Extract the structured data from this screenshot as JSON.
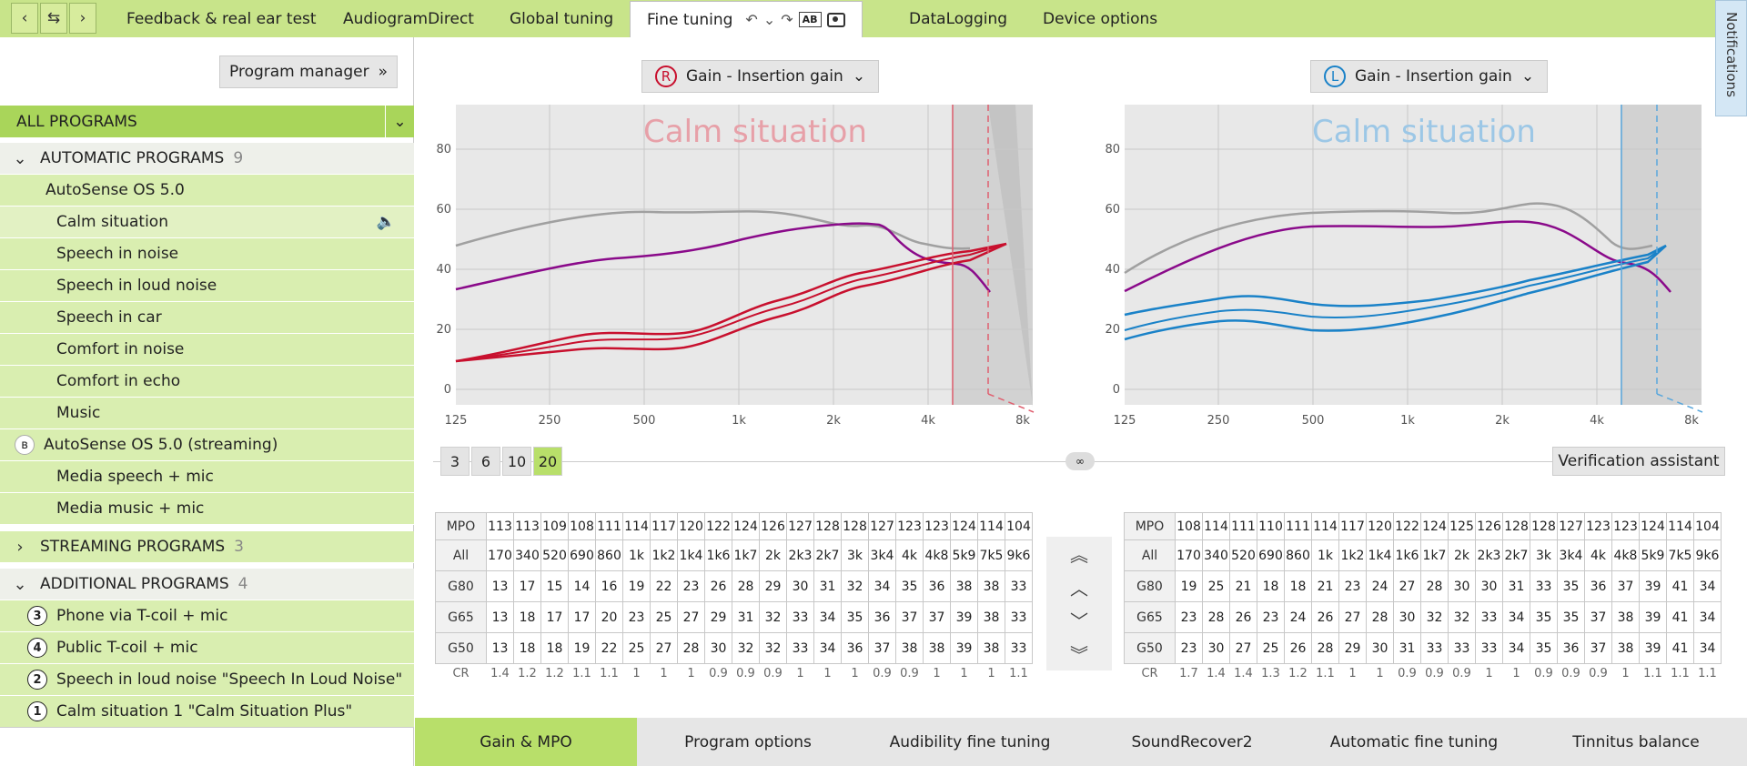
{
  "nav": {
    "back": "‹",
    "swap": "⇆",
    "forward": "›"
  },
  "tabs": [
    "Feedback & real ear test",
    "AudiogramDirect",
    "Global tuning",
    "Fine tuning",
    "DataLogging",
    "Device options"
  ],
  "tools": {
    "undo": "↶",
    "chev": "⌄",
    "redo": "↷",
    "ab": "AB"
  },
  "notifications": "Notifications",
  "sidebar": {
    "program_manager": "Program manager",
    "all_programs": "ALL PROGRAMS",
    "automatic": {
      "label": "AUTOMATIC PROGRAMS",
      "count": "9"
    },
    "autosense": "AutoSense OS 5.0",
    "auto_items": [
      "Calm situation",
      "Speech in noise",
      "Speech in loud noise",
      "Speech in car",
      "Comfort in noise",
      "Comfort in echo",
      "Music"
    ],
    "streaming_os": "AutoSense OS 5.0 (streaming)",
    "stream_items": [
      "Media speech + mic",
      "Media music + mic"
    ],
    "streaming": {
      "label": "STREAMING PROGRAMS",
      "count": "3"
    },
    "additional": {
      "label": "ADDITIONAL PROGRAMS",
      "count": "4"
    },
    "add_items": [
      {
        "num": "3",
        "label": "Phone via T-coil + mic"
      },
      {
        "num": "4",
        "label": "Public T-coil + mic"
      },
      {
        "num": "2",
        "label": "Speech in loud noise \"Speech In Loud Noise\""
      },
      {
        "num": "1",
        "label": "Calm situation 1 \"Calm Situation Plus\""
      }
    ]
  },
  "right_ear": {
    "badge": "R",
    "dropdown": "Gain - Insertion gain",
    "overlay": "Calm situation",
    "color": "#c8102e"
  },
  "left_ear": {
    "badge": "L",
    "dropdown": "Gain - Insertion gain",
    "overlay": "Calm situation",
    "color": "#1a82c8"
  },
  "chart_axes": {
    "x_ticks": [
      "125",
      "250",
      "500",
      "1k",
      "2k",
      "4k",
      "8k"
    ],
    "y_ticks": [
      "80",
      "60",
      "40",
      "20",
      "0"
    ]
  },
  "step_buttons": [
    "3",
    "6",
    "10",
    "20"
  ],
  "verification": "Verification assistant",
  "table_right": {
    "mpo": [
      "113",
      "113",
      "109",
      "108",
      "111",
      "114",
      "117",
      "120",
      "122",
      "124",
      "126",
      "127",
      "128",
      "128",
      "127",
      "123",
      "123",
      "124",
      "114",
      "104"
    ],
    "freqs": [
      "170",
      "340",
      "520",
      "690",
      "860",
      "1k",
      "1k2",
      "1k4",
      "1k6",
      "1k7",
      "2k",
      "2k3",
      "2k7",
      "3k",
      "3k4",
      "4k",
      "4k8",
      "5k9",
      "7k5",
      "9k6"
    ],
    "g80": [
      "13",
      "17",
      "15",
      "14",
      "16",
      "19",
      "22",
      "23",
      "26",
      "28",
      "29",
      "30",
      "31",
      "32",
      "34",
      "35",
      "36",
      "38",
      "38",
      "33"
    ],
    "g65": [
      "13",
      "18",
      "17",
      "17",
      "20",
      "23",
      "25",
      "27",
      "29",
      "31",
      "32",
      "33",
      "34",
      "35",
      "36",
      "37",
      "37",
      "39",
      "38",
      "33"
    ],
    "g50": [
      "13",
      "18",
      "18",
      "19",
      "22",
      "25",
      "27",
      "28",
      "30",
      "32",
      "32",
      "33",
      "34",
      "36",
      "37",
      "38",
      "38",
      "39",
      "38",
      "33"
    ],
    "cr": [
      "1.4",
      "1.2",
      "1.2",
      "1.1",
      "1.1",
      "1",
      "1",
      "1",
      "0.9",
      "0.9",
      "0.9",
      "1",
      "1",
      "1",
      "0.9",
      "0.9",
      "1",
      "1",
      "1",
      "1.1"
    ]
  },
  "table_left": {
    "mpo": [
      "108",
      "114",
      "111",
      "110",
      "111",
      "114",
      "117",
      "120",
      "122",
      "124",
      "125",
      "126",
      "128",
      "128",
      "127",
      "123",
      "123",
      "124",
      "114",
      "104"
    ],
    "freqs": [
      "170",
      "340",
      "520",
      "690",
      "860",
      "1k",
      "1k2",
      "1k4",
      "1k6",
      "1k7",
      "2k",
      "2k3",
      "2k7",
      "3k",
      "3k4",
      "4k",
      "4k8",
      "5k9",
      "7k5",
      "9k6"
    ],
    "g80": [
      "19",
      "25",
      "21",
      "18",
      "18",
      "21",
      "23",
      "24",
      "27",
      "28",
      "30",
      "30",
      "31",
      "33",
      "35",
      "36",
      "37",
      "39",
      "41",
      "34"
    ],
    "g65": [
      "23",
      "28",
      "26",
      "23",
      "24",
      "26",
      "27",
      "28",
      "30",
      "32",
      "32",
      "33",
      "34",
      "35",
      "35",
      "37",
      "38",
      "39",
      "41",
      "34"
    ],
    "g50": [
      "23",
      "30",
      "27",
      "25",
      "26",
      "28",
      "29",
      "30",
      "31",
      "33",
      "33",
      "33",
      "34",
      "35",
      "36",
      "37",
      "38",
      "39",
      "41",
      "34"
    ],
    "cr": [
      "1.7",
      "1.4",
      "1.4",
      "1.3",
      "1.2",
      "1.1",
      "1",
      "1",
      "0.9",
      "0.9",
      "0.9",
      "1",
      "1",
      "0.9",
      "0.9",
      "0.9",
      "1",
      "1.1",
      "1.1",
      "1.1"
    ]
  },
  "row_labels": {
    "mpo": "MPO",
    "all": "All",
    "g80": "G80",
    "g65": "G65",
    "g50": "G50",
    "cr": "CR"
  },
  "bottom_tabs": [
    "Gain & MPO",
    "Program options",
    "Audibility fine tuning",
    "SoundRecover2",
    "Automatic fine tuning",
    "Tinnitus balance"
  ]
}
